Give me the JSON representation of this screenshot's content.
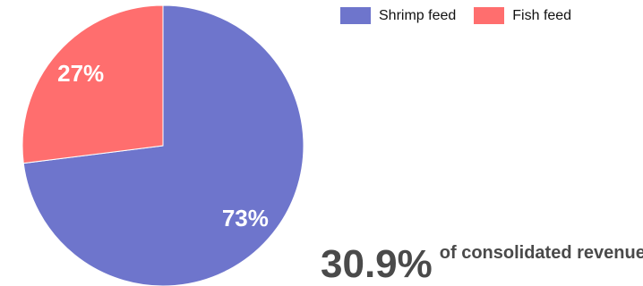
{
  "chart_data": {
    "type": "pie",
    "slices": [
      {
        "label": "Shrimp feed",
        "value": 73,
        "display": "73%",
        "color": "#6e75cc"
      },
      {
        "label": "Fish feed",
        "value": 27,
        "display": "27%",
        "color": "#ff6e6e"
      }
    ],
    "legend_position": "top-right"
  },
  "stat": {
    "value": "30.9%",
    "caption": "of consolidated revenue"
  }
}
